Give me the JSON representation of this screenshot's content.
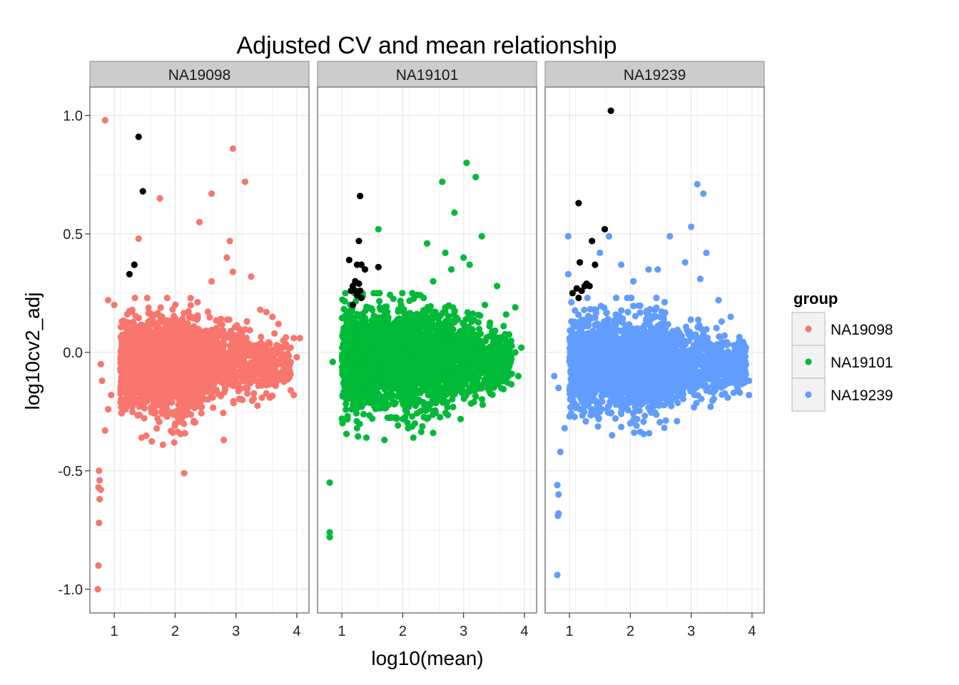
{
  "chart_data": {
    "type": "scatter",
    "title": "Adjusted CV and mean relationship",
    "xlabel": "log10(mean)",
    "ylabel": "log10cv2_adj",
    "xlim": [
      0.6,
      4.2
    ],
    "ylim": [
      -1.1,
      1.12
    ],
    "x_ticks": [
      1,
      2,
      3,
      4
    ],
    "y_ticks": [
      -1.0,
      -0.5,
      0.0,
      0.5,
      1.0
    ],
    "y_tick_labels": [
      "-1.0",
      "-0.5",
      "0.0",
      "0.5",
      "1.0"
    ],
    "grid": true,
    "facets": [
      "NA19098",
      "NA19101",
      "NA19239"
    ],
    "legend": {
      "title": "group",
      "position": "right",
      "items": [
        {
          "label": "NA19098",
          "color": "#F8766D"
        },
        {
          "label": "NA19101",
          "color": "#00BA38"
        },
        {
          "label": "NA19239",
          "color": "#619CFF"
        }
      ]
    },
    "highlight_color": "#000000",
    "series": [
      {
        "facet": "NA19098",
        "color": "#F8766D",
        "bulk": {
          "x_min": 1.1,
          "x_max": 2.4,
          "center_y": -0.05,
          "spread_y": 0.12,
          "tail_x_max": 3.9,
          "tail_spread": 0.06
        },
        "points": [
          [
            0.85,
            0.98
          ],
          [
            2.95,
            0.86
          ],
          [
            3.15,
            0.72
          ],
          [
            1.75,
            0.65
          ],
          [
            2.6,
            0.67
          ],
          [
            2.4,
            0.55
          ],
          [
            1.4,
            0.48
          ],
          [
            2.9,
            0.47
          ],
          [
            2.85,
            0.4
          ],
          [
            2.95,
            0.34
          ],
          [
            3.25,
            0.32
          ],
          [
            2.6,
            0.3
          ],
          [
            0.9,
            0.22
          ],
          [
            1.0,
            0.2
          ],
          [
            3.6,
            0.15
          ],
          [
            3.7,
            0.12
          ],
          [
            3.95,
            0.06
          ],
          [
            4.05,
            0.06
          ],
          [
            3.9,
            0.02
          ],
          [
            4.0,
            -0.02
          ],
          [
            3.8,
            -0.1
          ],
          [
            3.95,
            -0.18
          ],
          [
            3.9,
            -0.16
          ],
          [
            2.8,
            -0.37
          ],
          [
            2.15,
            -0.51
          ],
          [
            1.8,
            -0.39
          ],
          [
            1.45,
            -0.36
          ],
          [
            0.85,
            -0.33
          ],
          [
            0.78,
            -0.05
          ],
          [
            0.8,
            -0.12
          ],
          [
            0.75,
            -0.5
          ],
          [
            0.76,
            -0.54
          ],
          [
            0.74,
            -0.57
          ],
          [
            0.78,
            -0.58
          ],
          [
            0.76,
            -0.62
          ],
          [
            0.75,
            -0.72
          ],
          [
            0.74,
            -0.9
          ],
          [
            0.73,
            -1.0
          ],
          [
            0.9,
            -0.24
          ],
          [
            0.95,
            -0.18
          ],
          [
            3.4,
            0.18
          ],
          [
            3.5,
            0.17
          ]
        ],
        "highlight": [
          [
            1.4,
            0.91
          ],
          [
            1.47,
            0.68
          ],
          [
            1.33,
            0.37
          ],
          [
            1.25,
            0.33
          ]
        ]
      },
      {
        "facet": "NA19101",
        "color": "#00BA38",
        "bulk": {
          "x_min": 1.0,
          "x_max": 2.7,
          "center_y": -0.03,
          "spread_y": 0.13,
          "tail_x_max": 3.8,
          "tail_spread": 0.06
        },
        "points": [
          [
            3.05,
            0.8
          ],
          [
            3.2,
            0.74
          ],
          [
            2.65,
            0.72
          ],
          [
            2.85,
            0.59
          ],
          [
            3.3,
            0.49
          ],
          [
            1.6,
            0.52
          ],
          [
            2.4,
            0.46
          ],
          [
            2.7,
            0.42
          ],
          [
            3.0,
            0.4
          ],
          [
            3.1,
            0.37
          ],
          [
            2.8,
            0.35
          ],
          [
            2.5,
            0.3
          ],
          [
            3.55,
            0.28
          ],
          [
            3.35,
            0.2
          ],
          [
            3.85,
            0.19
          ],
          [
            3.7,
            0.16
          ],
          [
            3.95,
            0.02
          ],
          [
            3.85,
            0.0
          ],
          [
            3.9,
            -0.1
          ],
          [
            3.1,
            -0.15
          ],
          [
            3.45,
            -0.15
          ],
          [
            2.6,
            -0.2
          ],
          [
            2.2,
            -0.3
          ],
          [
            1.7,
            -0.37
          ],
          [
            2.5,
            -0.34
          ],
          [
            1.25,
            -0.32
          ],
          [
            1.0,
            -0.28
          ],
          [
            0.85,
            -0.04
          ],
          [
            0.8,
            -0.55
          ],
          [
            0.8,
            -0.76
          ],
          [
            0.8,
            -0.78
          ],
          [
            1.9,
            -0.28
          ],
          [
            1.5,
            -0.28
          ],
          [
            2.9,
            -0.15
          ]
        ],
        "highlight": [
          [
            1.3,
            0.66
          ],
          [
            1.28,
            0.47
          ],
          [
            1.12,
            0.39
          ],
          [
            1.25,
            0.37
          ],
          [
            1.32,
            0.37
          ],
          [
            1.38,
            0.35
          ],
          [
            1.6,
            0.36
          ],
          [
            1.22,
            0.3
          ],
          [
            1.28,
            0.29
          ],
          [
            1.18,
            0.28
          ],
          [
            1.22,
            0.26
          ],
          [
            1.3,
            0.26
          ],
          [
            1.15,
            0.26
          ],
          [
            1.25,
            0.24
          ],
          [
            1.32,
            0.23
          ],
          [
            1.18,
            0.2
          ]
        ]
      },
      {
        "facet": "NA19239",
        "color": "#619CFF",
        "bulk": {
          "x_min": 1.0,
          "x_max": 2.6,
          "center_y": -0.05,
          "spread_y": 0.12,
          "tail_x_max": 3.9,
          "tail_spread": 0.06
        },
        "points": [
          [
            3.1,
            0.71
          ],
          [
            3.2,
            0.67
          ],
          [
            3.0,
            0.53
          ],
          [
            1.65,
            0.49
          ],
          [
            2.65,
            0.49
          ],
          [
            3.25,
            0.42
          ],
          [
            0.98,
            0.49
          ],
          [
            1.5,
            0.42
          ],
          [
            1.85,
            0.37
          ],
          [
            2.3,
            0.35
          ],
          [
            2.45,
            0.35
          ],
          [
            2.9,
            0.38
          ],
          [
            0.98,
            0.33
          ],
          [
            3.15,
            0.31
          ],
          [
            2.05,
            0.3
          ],
          [
            3.45,
            0.22
          ],
          [
            3.65,
            0.15
          ],
          [
            3.5,
            0.13
          ],
          [
            3.9,
            0.02
          ],
          [
            3.95,
            -0.12
          ],
          [
            3.75,
            -0.14
          ],
          [
            3.8,
            -0.17
          ],
          [
            3.95,
            -0.18
          ],
          [
            2.0,
            -0.3
          ],
          [
            1.7,
            -0.35
          ],
          [
            1.0,
            -0.27
          ],
          [
            0.92,
            -0.32
          ],
          [
            0.85,
            -0.42
          ],
          [
            0.8,
            -0.56
          ],
          [
            0.82,
            -0.6
          ],
          [
            0.82,
            -0.68
          ],
          [
            0.81,
            -0.69
          ],
          [
            0.8,
            -0.94
          ],
          [
            0.75,
            -0.1
          ],
          [
            0.82,
            -0.15
          ]
        ],
        "highlight": [
          [
            1.68,
            1.02
          ],
          [
            1.15,
            0.63
          ],
          [
            1.58,
            0.52
          ],
          [
            1.37,
            0.47
          ],
          [
            1.17,
            0.38
          ],
          [
            1.42,
            0.37
          ],
          [
            1.28,
            0.29
          ],
          [
            1.33,
            0.28
          ],
          [
            1.25,
            0.28
          ],
          [
            1.12,
            0.27
          ],
          [
            1.2,
            0.26
          ],
          [
            1.05,
            0.25
          ],
          [
            1.15,
            0.23
          ]
        ]
      }
    ]
  }
}
